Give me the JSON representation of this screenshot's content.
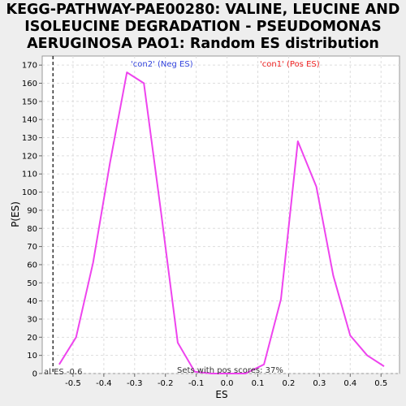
{
  "chart_data": {
    "type": "line",
    "title_lines": [
      "KEGG-PATHWAY-PAE00280: VALINE, LEUCINE AND",
      "ISOLEUCINE DEGRADATION - PSEUDOMONAS",
      "AERUGINOSA PAO1: Random ES distribution"
    ],
    "xlabel": "ES",
    "ylabel": "P(ES)",
    "xlim": [
      -0.6,
      0.56
    ],
    "ylim": [
      0,
      175
    ],
    "xticks": [
      "-0.5",
      "-0.4",
      "-0.3",
      "-0.2",
      "-0.1",
      "0.0",
      "0.1",
      "0.2",
      "0.3",
      "0.4",
      "0.5"
    ],
    "yticks": [
      "0",
      "10",
      "20",
      "30",
      "40",
      "50",
      "60",
      "70",
      "80",
      "90",
      "100",
      "110",
      "120",
      "130",
      "140",
      "150",
      "160",
      "170"
    ],
    "grid": true,
    "line_color": "#ee44ee",
    "series": [
      {
        "x": [
          -0.545,
          -0.49,
          -0.435,
          -0.38,
          -0.325,
          -0.27,
          -0.215,
          -0.16,
          -0.105,
          -0.05,
          0.005,
          0.06,
          0.12,
          0.175,
          0.23,
          0.29,
          0.345,
          0.4,
          0.455,
          0.51
        ],
        "values": [
          5,
          20,
          61,
          116,
          166,
          160,
          90,
          17,
          1,
          0,
          0,
          0,
          5,
          41,
          128,
          103,
          54,
          21,
          10,
          4
        ]
      }
    ],
    "vline": {
      "x": -0.565,
      "label": "al ES -0.6",
      "color": "#333333"
    },
    "annotations": {
      "neg": {
        "text": "'con2' (Neg ES)",
        "color": "#3344dd"
      },
      "pos": {
        "text": "'con1' (Pos ES)",
        "color": "#ee2222"
      },
      "bottom": {
        "text": "Sets with pos scores: 37%",
        "color": "#333333"
      }
    }
  }
}
